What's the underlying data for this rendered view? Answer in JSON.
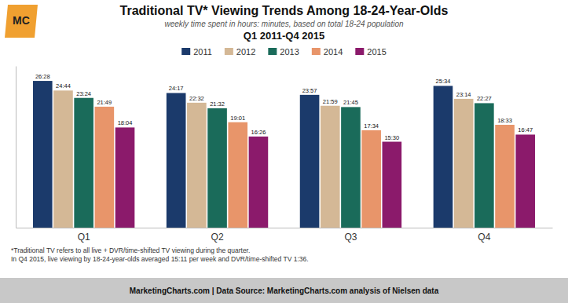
{
  "chart_data": {
    "type": "bar",
    "title": "Traditional TV* Viewing Trends Among 18-24-Year-Olds",
    "subtitle": "weekly time spent in hours: minutes, based on total 18-24 population",
    "subtitle2": "Q1 2011-Q4 2015",
    "categories": [
      "Q1",
      "Q2",
      "Q3",
      "Q4"
    ],
    "series": [
      {
        "name": "2011",
        "color": "#1b3a6b",
        "values": [
          1588,
          1457,
          1437,
          1534
        ],
        "value_labels": [
          "26:28",
          "24:17",
          "23:57",
          "25:34"
        ]
      },
      {
        "name": "2012",
        "color": "#d4b896",
        "values": [
          1484,
          1352,
          1319,
          1394
        ],
        "value_labels": [
          "24:44",
          "22:32",
          "21:59",
          "23:14"
        ]
      },
      {
        "name": "2013",
        "color": "#1a6b5a",
        "values": [
          1404,
          1292,
          1305,
          1347
        ],
        "value_labels": [
          "23:24",
          "21:32",
          "21:45",
          "22:27"
        ]
      },
      {
        "name": "2014",
        "color": "#e8956a",
        "values": [
          1309,
          1141,
          1054,
          1113
        ],
        "value_labels": [
          "21:49",
          "19:01",
          "17:34",
          "18:33"
        ]
      },
      {
        "name": "2015",
        "color": "#8b1a6b",
        "values": [
          1084,
          986,
          930,
          1007
        ],
        "value_labels": [
          "18:04",
          "16:26",
          "15:30",
          "16:47"
        ]
      }
    ],
    "ylim": [
      0,
      1750
    ],
    "tick_labels": "x",
    "grid": false,
    "legend": "top",
    "data_labels": true,
    "footnote": [
      "*Traditional TV refers to all live + DVR/time-shifted TV viewing during the quarter.",
      "In Q4 2015, live viewing by 18-24-year-olds averaged 15:11 per week and DVR/time-shifted TV 1:36."
    ],
    "credit": "MarketingCharts.com | Data Source: MarketingCharts.com analysis of Nielsen data",
    "logo_text": "MC"
  }
}
